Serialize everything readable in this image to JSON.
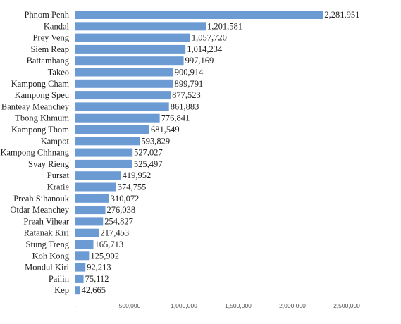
{
  "chart_data": {
    "type": "bar",
    "orientation": "horizontal",
    "title": "",
    "xlabel": "",
    "ylabel": "",
    "xlim": [
      0,
      2500000
    ],
    "grid": false,
    "legend": "none",
    "bar_color": "#6b9bd2",
    "categories": [
      "Phnom Penh",
      "Kandal",
      "Prey Veng",
      "Siem Reap",
      "Battambang",
      "Takeo",
      "Kampong Cham",
      "Kampong Speu",
      "Banteay Meanchey",
      "Tbong Khmum",
      "Kampong Thom",
      "Kampot",
      "Kampong Chhnang",
      "Svay Rieng",
      "Pursat",
      "Kratie",
      "Preah Sihanouk",
      "Otdar Meanchey",
      "Preah Vihear",
      "Ratanak Kiri",
      "Stung Treng",
      "Koh Kong",
      "Mondul Kiri",
      "Pailin",
      "Kep"
    ],
    "values": [
      2281951,
      1201581,
      1057720,
      1014234,
      997169,
      900914,
      899791,
      877523,
      861883,
      776841,
      681549,
      593829,
      527027,
      525497,
      419952,
      374755,
      310072,
      276038,
      254827,
      217453,
      165713,
      125902,
      92213,
      75112,
      42665
    ],
    "value_labels": [
      "2,281,951",
      "1,201,581",
      "1,057,720",
      "1,014,234",
      "997,169",
      "900,914",
      "899,791",
      "877,523",
      "861,883",
      "776,841",
      "681,549",
      "593,829",
      "527,027",
      "525,497",
      "419,952",
      "374,755",
      "310,072",
      "276,038",
      "254,827",
      "217,453",
      "165,713",
      "125,902",
      "92,213",
      "75,112",
      "42,665"
    ],
    "x_ticks": [
      0,
      500000,
      1000000,
      1500000,
      2000000,
      2500000
    ],
    "x_tick_labels": [
      "-",
      "500,000",
      "1,000,000",
      "1,500,000",
      "2,000,000",
      "2,500,000"
    ]
  }
}
